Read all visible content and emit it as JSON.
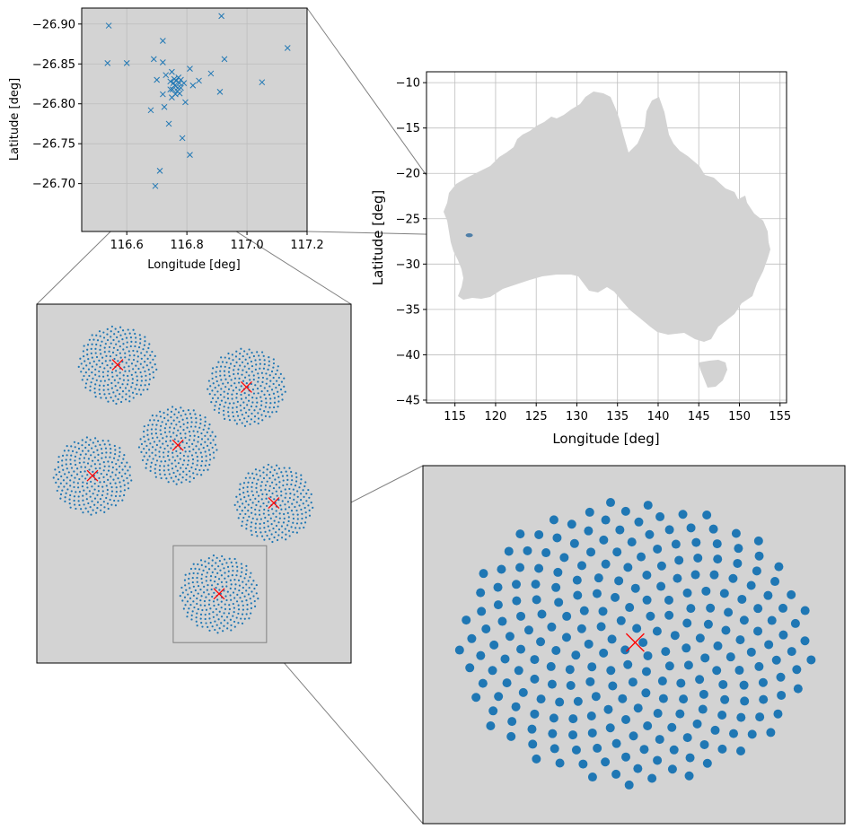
{
  "colors": {
    "axes_bg": "#d3d3d3",
    "land": "#d3d3d3",
    "grid": "#bdbdbd",
    "station": "#1f77b4",
    "center": "#ff0000",
    "connector": "#808080"
  },
  "chart_data": [
    {
      "id": "map",
      "type": "map",
      "xlabel": "Longitude [deg]",
      "ylabel": "Latitude [deg]",
      "xlim": [
        111.5,
        155.8
      ],
      "ylim": [
        -45.3,
        -8.8
      ],
      "xticks": [
        115,
        120,
        125,
        130,
        135,
        140,
        145,
        150,
        155
      ],
      "yticks": [
        -10,
        -15,
        -20,
        -25,
        -30,
        -35,
        -40,
        -45
      ],
      "xtick_labels": [
        "115",
        "120",
        "125",
        "130",
        "135",
        "140",
        "145",
        "150",
        "155"
      ],
      "ytick_labels": [
        "−10",
        "−15",
        "−20",
        "−25",
        "−30",
        "−35",
        "−40",
        "−45"
      ],
      "grid": true,
      "site": {
        "lon": 116.76,
        "lat": -26.82
      }
    },
    {
      "id": "inset_stations",
      "type": "scatter",
      "marker": "x",
      "xlabel": "Longitude [deg]",
      "ylabel": "Latitude [deg]",
      "xlim": [
        116.45,
        117.2
      ],
      "ylim": [
        -26.64,
        -26.92
      ],
      "xticks": [
        116.6,
        116.8,
        117.0,
        117.2
      ],
      "yticks": [
        -26.9,
        -26.85,
        -26.8,
        -26.75,
        -26.7
      ],
      "xtick_labels": [
        "116.6",
        "116.8",
        "117.0",
        "117.2"
      ],
      "ytick_labels": [
        "−26.90",
        "−26.85",
        "−26.80",
        "−26.75",
        "−26.70"
      ],
      "grid": true,
      "points": [
        [
          116.54,
          -26.898
        ],
        [
          116.915,
          -26.91
        ],
        [
          116.72,
          -26.879
        ],
        [
          117.135,
          -26.87
        ],
        [
          116.536,
          -26.851
        ],
        [
          116.6,
          -26.851
        ],
        [
          116.69,
          -26.856
        ],
        [
          116.72,
          -26.852
        ],
        [
          116.925,
          -26.856
        ],
        [
          116.81,
          -26.844
        ],
        [
          116.75,
          -26.84
        ],
        [
          116.88,
          -26.838
        ],
        [
          116.73,
          -26.836
        ],
        [
          116.7,
          -26.83
        ],
        [
          116.78,
          -26.83
        ],
        [
          116.84,
          -26.829
        ],
        [
          117.05,
          -26.827
        ],
        [
          116.82,
          -26.823
        ],
        [
          116.745,
          -26.818
        ],
        [
          116.91,
          -26.815
        ],
        [
          116.72,
          -26.812
        ],
        [
          116.795,
          -26.802
        ],
        [
          116.75,
          -26.808
        ],
        [
          116.725,
          -26.796
        ],
        [
          116.68,
          -26.792
        ],
        [
          116.74,
          -26.775
        ],
        [
          116.785,
          -26.757
        ],
        [
          116.81,
          -26.736
        ],
        [
          116.71,
          -26.716
        ],
        [
          116.695,
          -26.697
        ],
        [
          116.76,
          -26.823
        ],
        [
          116.77,
          -26.82
        ],
        [
          116.755,
          -26.826
        ],
        [
          116.765,
          -26.829
        ],
        [
          116.775,
          -26.826
        ],
        [
          116.768,
          -26.816
        ],
        [
          116.752,
          -26.818
        ],
        [
          116.78,
          -26.82
        ],
        [
          116.758,
          -26.831
        ],
        [
          116.772,
          -26.833
        ],
        [
          116.79,
          -26.826
        ],
        [
          116.745,
          -26.828
        ],
        [
          116.762,
          -26.812
        ],
        [
          116.776,
          -26.813
        ]
      ]
    },
    {
      "id": "inset_clusters",
      "type": "scatter",
      "clusters": [
        {
          "cx": 0.257,
          "cy": 0.831,
          "r": 0.125,
          "n": 256
        },
        {
          "cx": 0.667,
          "cy": 0.769,
          "r": 0.125,
          "n": 256
        },
        {
          "cx": 0.449,
          "cy": 0.607,
          "r": 0.125,
          "n": 256
        },
        {
          "cx": 0.177,
          "cy": 0.522,
          "r": 0.125,
          "n": 256
        },
        {
          "cx": 0.754,
          "cy": 0.446,
          "r": 0.125,
          "n": 256
        },
        {
          "cx": 0.58,
          "cy": 0.193,
          "r": 0.125,
          "n": 256
        }
      ],
      "zoom_box": {
        "x0": 0.434,
        "x1": 0.731,
        "y0": 0.057,
        "y1": 0.327
      }
    },
    {
      "id": "inset_station_zoom",
      "type": "scatter",
      "n": 256,
      "center": {
        "x": 0.503,
        "y": 0.506
      }
    }
  ]
}
